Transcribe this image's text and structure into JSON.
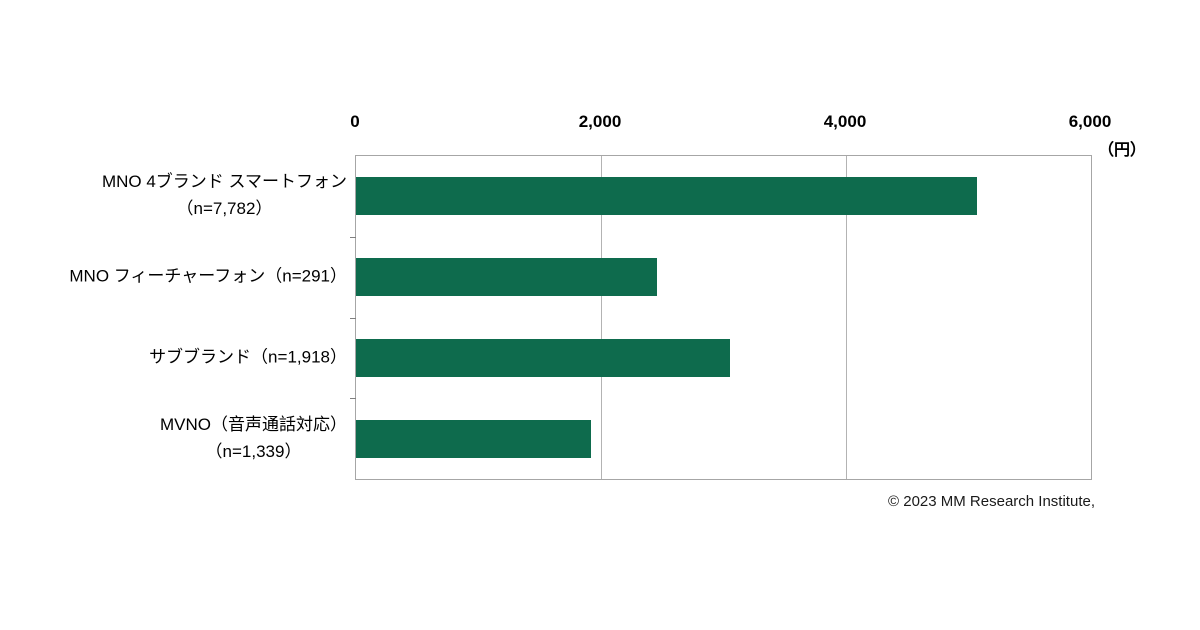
{
  "chart_data": {
    "type": "bar",
    "orientation": "horizontal",
    "title": "",
    "unit_label": "（円）",
    "bar_color": "#0e6b4d",
    "grid": true,
    "x_axis": {
      "position": "top",
      "min": 0,
      "max": 6000,
      "ticks": [
        0,
        2000,
        4000,
        6000
      ],
      "tick_labels": [
        "0",
        "2,000",
        "4,000",
        "6,000"
      ]
    },
    "categories": [
      {
        "label_lines": [
          "MNO 4ブランド スマートフォン",
          "（n=7,782）"
        ],
        "value": 5070
      },
      {
        "label_lines": [
          "MNO フィーチャーフォン（n=291）"
        ],
        "value": 2460
      },
      {
        "label_lines": [
          "サブブランド（n=1,918）"
        ],
        "value": 3050
      },
      {
        "label_lines": [
          "MVNO（音声通話対応）",
          "（n=1,339）"
        ],
        "value": 1920
      }
    ]
  },
  "footer": {
    "credit": "© 2023 MM Research Institute,"
  }
}
